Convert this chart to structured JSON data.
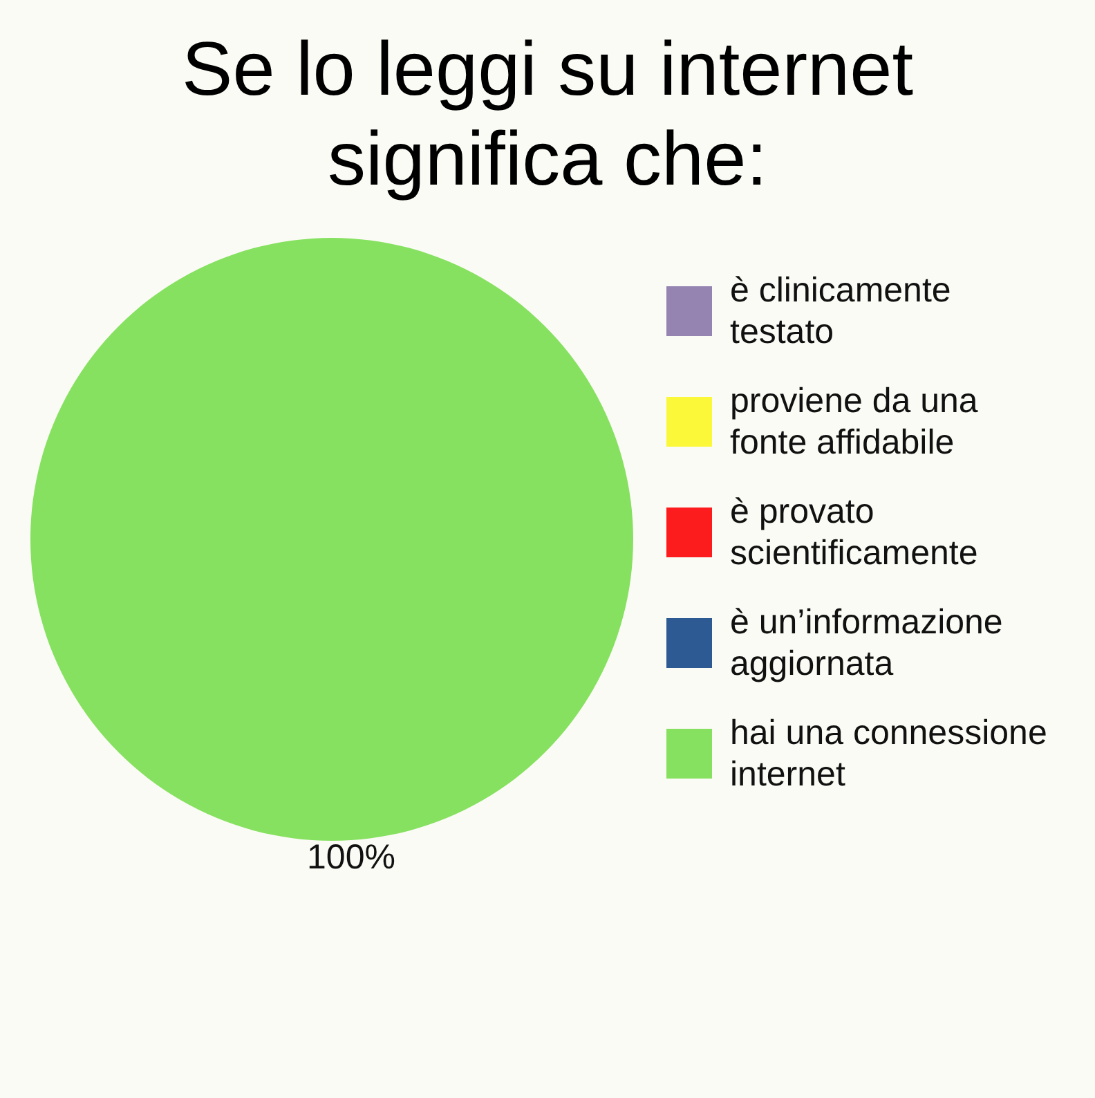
{
  "chart_data": {
    "type": "pie",
    "title": "Se lo leggi su internet significa che:",
    "categories": [
      "è clinicamente testato",
      "proviene da una fonte affidabile",
      "è provato scientificamente",
      "è un’informazione aggiornata",
      "hai una connessione internet"
    ],
    "values": [
      0,
      0,
      0,
      0,
      100
    ],
    "colors": [
      "#9584b2",
      "#fbf83a",
      "#fc1b1d",
      "#2d5a92",
      "#86e160"
    ],
    "value_labels": [
      null,
      null,
      null,
      null,
      "100%"
    ],
    "legend": "right"
  }
}
